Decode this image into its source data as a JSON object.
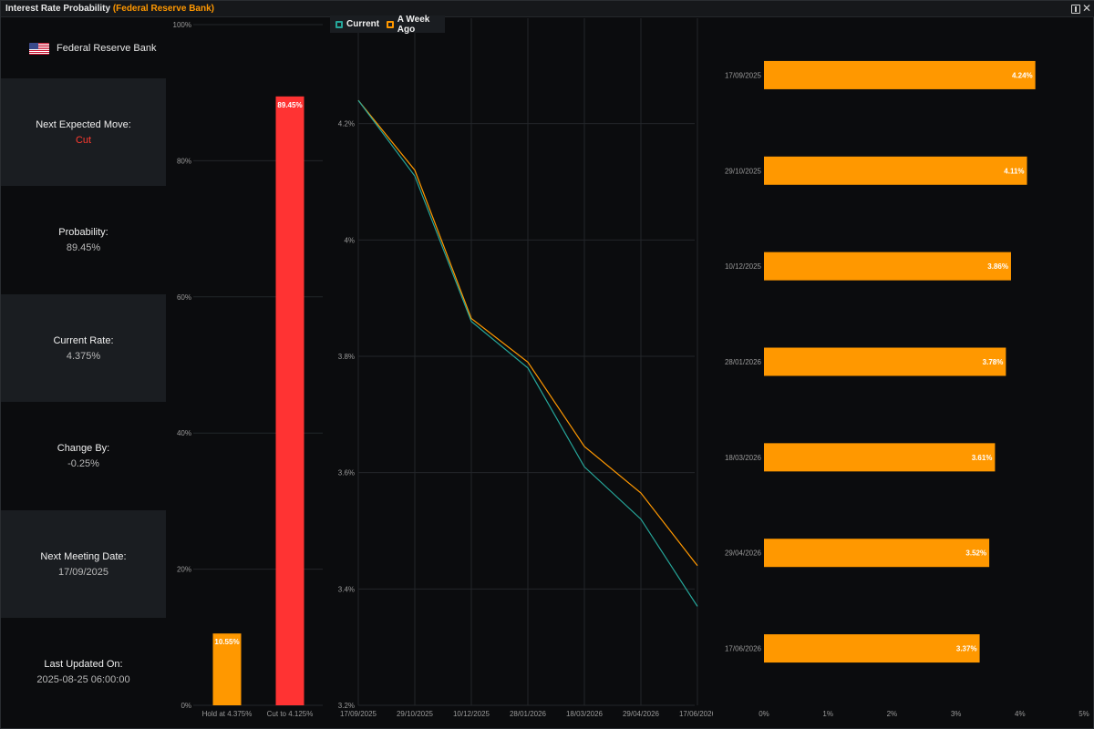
{
  "window": {
    "title_prefix": "Interest Rate Probability",
    "title_accent": "(Federal Reserve Bank)"
  },
  "info": {
    "bank": "Federal Reserve Bank",
    "flag_icon": "us-flag-icon",
    "next_move_label": "Next Expected Move:",
    "next_move_value": "Cut",
    "probability_label": "Probability:",
    "probability_value": "89.45%",
    "current_rate_label": "Current Rate:",
    "current_rate_value": "4.375%",
    "change_label": "Change By:",
    "change_value": "-0.25%",
    "meeting_label": "Next Meeting Date:",
    "meeting_value": "17/09/2025",
    "updated_label": "Last Updated On:",
    "updated_value": "2025-08-25 06:00:00"
  },
  "colors": {
    "orange": "#ff9800",
    "red": "#ff3333",
    "teal": "#26a69a",
    "grid": "#23262a",
    "axis_text": "#9a9a9a"
  },
  "legend": {
    "current": "Current",
    "week_ago": "A Week Ago"
  },
  "chart_data": [
    {
      "type": "bar",
      "categories": [
        "Hold at 4.375%",
        "Cut to 4.125%"
      ],
      "values": [
        10.55,
        89.45
      ],
      "data_labels": [
        "10.55%",
        "89.45%"
      ],
      "bar_colors": [
        "#ff9800",
        "#ff3333"
      ],
      "ylim": [
        0,
        100
      ],
      "yticks": [
        0,
        20,
        40,
        60,
        80,
        100
      ],
      "ytick_labels": [
        "0%",
        "20%",
        "40%",
        "60%",
        "80%",
        "100%"
      ],
      "grid": true
    },
    {
      "type": "line",
      "x": [
        "17/09/2025",
        "29/10/2025",
        "10/12/2025",
        "28/01/2026",
        "18/03/2026",
        "29/04/2026",
        "17/06/2026"
      ],
      "series": [
        {
          "name": "Current",
          "values": [
            4.24,
            4.11,
            3.86,
            3.78,
            3.61,
            3.52,
            3.37
          ],
          "color": "#26a69a"
        },
        {
          "name": "A Week Ago",
          "values": [
            4.24,
            4.12,
            3.865,
            3.79,
            3.645,
            3.565,
            3.44
          ],
          "color": "#ff9800"
        }
      ],
      "ylim": [
        3.2,
        4.4
      ],
      "yticks": [
        3.2,
        3.4,
        3.6,
        3.8,
        4.0,
        4.2
      ],
      "ytick_labels": [
        "3.2%",
        "3.4%",
        "3.6%",
        "3.8%",
        "4%",
        "4.2%"
      ],
      "grid": true,
      "legend": "top-left"
    },
    {
      "type": "bar",
      "orientation": "horizontal",
      "categories": [
        "17/09/2025",
        "29/10/2025",
        "10/12/2025",
        "28/01/2026",
        "18/03/2026",
        "29/04/2026",
        "17/06/2026"
      ],
      "values": [
        4.24,
        4.11,
        3.86,
        3.78,
        3.61,
        3.52,
        3.37
      ],
      "data_labels": [
        "4.24%",
        "4.11%",
        "3.86%",
        "3.78%",
        "3.61%",
        "3.52%",
        "3.37%"
      ],
      "color": "#ff9800",
      "xlim": [
        0,
        5
      ],
      "xticks": [
        0,
        1,
        2,
        3,
        4,
        5
      ],
      "xtick_labels": [
        "0%",
        "1%",
        "2%",
        "3%",
        "4%",
        "5%"
      ]
    }
  ]
}
